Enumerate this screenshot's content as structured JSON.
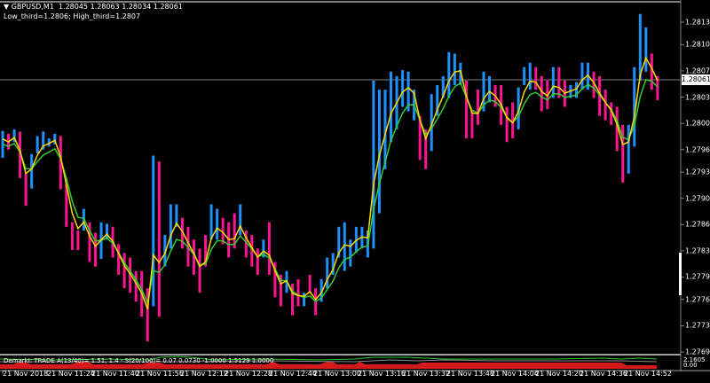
{
  "header": {
    "symbol": "GBPUSD,M1",
    "ohlc": "1.28045 1.28063 1.28034 1.28061",
    "indicator_info": "Low_third=1.2806; High_third=1.2807"
  },
  "colors": {
    "background": "#000000",
    "up_bar": "#1e90ff",
    "down_bar": "#ff1493",
    "ma_fast": "#ffd700",
    "ma_slow": "#32cd32",
    "sub_red": "#d41a1a",
    "grid_line": "#808080"
  },
  "price_axis": {
    "labels": [
      "1.28138",
      "1.28108",
      "1.28073",
      "1.28038",
      "1.28003",
      "1.27968",
      "1.27938",
      "1.27903",
      "1.27868",
      "1.27833",
      "1.27798",
      "1.27768",
      "1.27733",
      "1.27698"
    ],
    "bid": "1.28061"
  },
  "time_axis": {
    "labels": [
      "21 Nov 2018",
      "21 Nov 11:24",
      "21 Nov 11:40",
      "21 Nov 11:56",
      "21 Nov 12:12",
      "21 Nov 12:28",
      "21 Nov 12:44",
      "21 Nov 13:00",
      "21 Nov 13:16",
      "21 Nov 13:32",
      "21 Nov 13:48",
      "21 Nov 14:04",
      "21 Nov 14:20",
      "21 Nov 14:36",
      "21 Nov 14:52"
    ]
  },
  "subwindow": {
    "title": "DemarkI: TRADE  A(13/40)= 1.51, 1.4 - S(20/100)= 0.07  0.0730 -1.0000 1.5129 1.0000",
    "axis_max": "2.1605",
    "axis_min": "0.00"
  },
  "chart_data": {
    "type": "bar",
    "symbol": "GBPUSD",
    "timeframe": "M1",
    "ylim": [
      1.27698,
      1.28138
    ],
    "bars": [
      [
        1.27993,
        1.27957,
        "u"
      ],
      [
        1.27989,
        1.27968,
        "d"
      ],
      [
        1.27995,
        1.27978,
        "u"
      ],
      [
        1.27992,
        1.2793,
        "d"
      ],
      [
        1.27936,
        1.27893,
        "d"
      ],
      [
        1.27962,
        1.27916,
        "u"
      ],
      [
        1.27986,
        1.27963,
        "u"
      ],
      [
        1.27992,
        1.27968,
        "u"
      ],
      [
        1.27983,
        1.27972,
        "u"
      ],
      [
        1.27989,
        1.27975,
        "u"
      ],
      [
        1.27986,
        1.27915,
        "d"
      ],
      [
        1.2793,
        1.27865,
        "d"
      ],
      [
        1.27871,
        1.27834,
        "d"
      ],
      [
        1.2786,
        1.27834,
        "d"
      ],
      [
        1.27889,
        1.2786,
        "u"
      ],
      [
        1.27871,
        1.27818,
        "d"
      ],
      [
        1.27857,
        1.27812,
        "d"
      ],
      [
        1.27871,
        1.27822,
        "u"
      ],
      [
        1.27869,
        1.27848,
        "u"
      ],
      [
        1.27865,
        1.27824,
        "d"
      ],
      [
        1.27842,
        1.27801,
        "d"
      ],
      [
        1.2783,
        1.27783,
        "d"
      ],
      [
        1.27824,
        1.27777,
        "d"
      ],
      [
        1.27806,
        1.27765,
        "d"
      ],
      [
        1.27806,
        1.27745,
        "d"
      ],
      [
        1.27783,
        1.27712,
        "d"
      ],
      [
        1.2796,
        1.27759,
        "u"
      ],
      [
        1.27952,
        1.27745,
        "d"
      ],
      [
        1.27854,
        1.27812,
        "u"
      ],
      [
        1.27895,
        1.27836,
        "u"
      ],
      [
        1.27895,
        1.27865,
        "u"
      ],
      [
        1.27877,
        1.27836,
        "d"
      ],
      [
        1.27865,
        1.27812,
        "d"
      ],
      [
        1.27848,
        1.27801,
        "d"
      ],
      [
        1.27836,
        1.27777,
        "d"
      ],
      [
        1.27854,
        1.27812,
        "d"
      ],
      [
        1.27895,
        1.27848,
        "u"
      ],
      [
        1.27889,
        1.27848,
        "u"
      ],
      [
        1.27877,
        1.27842,
        "d"
      ],
      [
        1.27871,
        1.27824,
        "d"
      ],
      [
        1.27883,
        1.27836,
        "d"
      ],
      [
        1.27895,
        1.27854,
        "u"
      ],
      [
        1.2786,
        1.27824,
        "d"
      ],
      [
        1.27854,
        1.27812,
        "d"
      ],
      [
        1.27836,
        1.27801,
        "d"
      ],
      [
        1.27848,
        1.27824,
        "u"
      ],
      [
        1.27871,
        1.27801,
        "d"
      ],
      [
        1.27818,
        1.27771,
        "d"
      ],
      [
        1.27801,
        1.27759,
        "d"
      ],
      [
        1.27806,
        1.27777,
        "u"
      ],
      [
        1.27789,
        1.27747,
        "d"
      ],
      [
        1.27795,
        1.27759,
        "d"
      ],
      [
        1.27777,
        1.27759,
        "u"
      ],
      [
        1.27801,
        1.27777,
        "d"
      ],
      [
        1.27783,
        1.27747,
        "d"
      ],
      [
        1.27795,
        1.27765,
        "u"
      ],
      [
        1.27824,
        1.27783,
        "u"
      ],
      [
        1.2783,
        1.27801,
        "u"
      ],
      [
        1.27865,
        1.27824,
        "u"
      ],
      [
        1.27871,
        1.27806,
        "u"
      ],
      [
        1.27848,
        1.27812,
        "u"
      ],
      [
        1.27865,
        1.2783,
        "u"
      ],
      [
        1.27865,
        1.27836,
        "u"
      ],
      [
        1.2786,
        1.27824,
        "u"
      ],
      [
        1.2806,
        1.27836,
        "u"
      ],
      [
        1.28048,
        1.27883,
        "u"
      ],
      [
        1.28048,
        1.27942,
        "u"
      ],
      [
        1.28072,
        1.27978,
        "u"
      ],
      [
        1.28066,
        1.27995,
        "u"
      ],
      [
        1.28074,
        1.28025,
        "u"
      ],
      [
        1.28072,
        1.28019,
        "u"
      ],
      [
        1.28048,
        1.28007,
        "u"
      ],
      [
        1.28013,
        1.27954,
        "d"
      ],
      [
        1.27995,
        1.27942,
        "d"
      ],
      [
        1.28042,
        1.27966,
        "u"
      ],
      [
        1.28054,
        1.28013,
        "u"
      ],
      [
        1.28066,
        1.28037,
        "u"
      ],
      [
        1.28098,
        1.28037,
        "u"
      ],
      [
        1.28096,
        1.28054,
        "u"
      ],
      [
        1.28084,
        1.28054,
        "u"
      ],
      [
        1.2806,
        1.27983,
        "d"
      ],
      [
        1.28019,
        1.27983,
        "d"
      ],
      [
        1.28048,
        1.28001,
        "d"
      ],
      [
        1.28072,
        1.28019,
        "u"
      ],
      [
        1.28066,
        1.28031,
        "u"
      ],
      [
        1.28054,
        1.28025,
        "d"
      ],
      [
        1.28054,
        1.28001,
        "d"
      ],
      [
        1.28025,
        1.27978,
        "d"
      ],
      [
        1.28031,
        1.27983,
        "d"
      ],
      [
        1.28051,
        1.27995,
        "u"
      ],
      [
        1.28078,
        1.28054,
        "u"
      ],
      [
        1.28084,
        1.28048,
        "u"
      ],
      [
        1.28078,
        1.28048,
        "d"
      ],
      [
        1.28066,
        1.28019,
        "d"
      ],
      [
        1.2806,
        1.28022,
        "d"
      ],
      [
        1.28078,
        1.28037,
        "u"
      ],
      [
        1.28078,
        1.28037,
        "d"
      ],
      [
        1.2806,
        1.28025,
        "d"
      ],
      [
        1.28054,
        1.28037,
        "u"
      ],
      [
        1.28058,
        1.28037,
        "u"
      ],
      [
        1.28084,
        1.28048,
        "u"
      ],
      [
        1.28084,
        1.28048,
        "u"
      ],
      [
        1.28072,
        1.28037,
        "d"
      ],
      [
        1.28066,
        1.28013,
        "d"
      ],
      [
        1.28048,
        1.28007,
        "d"
      ],
      [
        1.28031,
        1.28001,
        "d"
      ],
      [
        1.28025,
        1.27966,
        "d"
      ],
      [
        1.28001,
        1.27924,
        "d"
      ],
      [
        1.28001,
        1.27936,
        "u"
      ],
      [
        1.28078,
        1.27972,
        "u"
      ],
      [
        1.28149,
        1.2806,
        "u"
      ],
      [
        1.28131,
        1.28072,
        "u"
      ],
      [
        1.28096,
        1.28048,
        "d"
      ],
      [
        1.28066,
        1.28034,
        "d"
      ]
    ]
  }
}
